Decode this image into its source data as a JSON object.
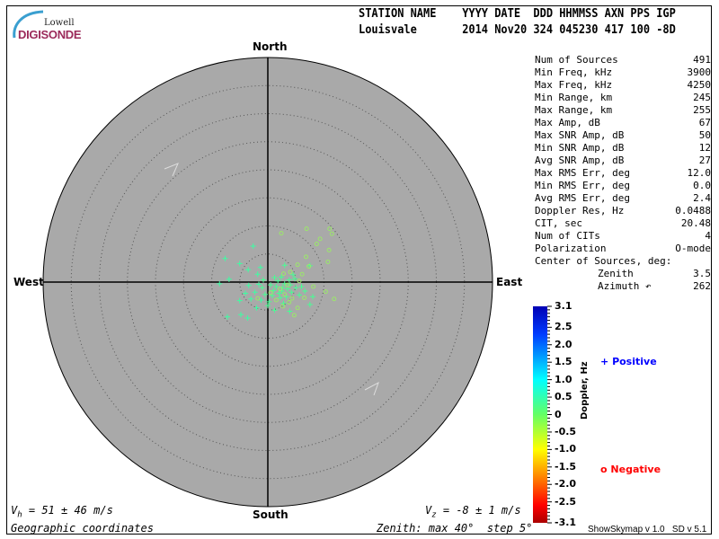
{
  "logo": {
    "line1": "Lowell",
    "line2": "DIGISONDE"
  },
  "header": {
    "labels": "STATION NAME    YYYY DATE  DDD HHMMSS AXN PPS IGP",
    "values": "Louisvale       2014 Nov20 324 045230 417 100 -8D"
  },
  "directions": {
    "north": "North",
    "south": "South",
    "east": "East",
    "west": "West"
  },
  "stats": [
    {
      "label": "Num of Sources",
      "value": "491"
    },
    {
      "label": "Min Freq, kHz",
      "value": "3900"
    },
    {
      "label": "Max Freq, kHz",
      "value": "4250"
    },
    {
      "label": "Min Range, km",
      "value": "245"
    },
    {
      "label": "Max Range, km",
      "value": "255"
    },
    {
      "label": "Max Amp, dB",
      "value": "67"
    },
    {
      "label": "Max SNR Amp, dB",
      "value": "50"
    },
    {
      "label": "Min SNR Amp, dB",
      "value": "12"
    },
    {
      "label": "Avg SNR Amp, dB",
      "value": "27"
    },
    {
      "label": "Max RMS Err, deg",
      "value": "12.0"
    },
    {
      "label": "Min RMS Err, deg",
      "value": "0.0"
    },
    {
      "label": "Avg RMS Err, deg",
      "value": "2.4"
    },
    {
      "label": "Doppler Res, Hz",
      "value": "0.0488"
    },
    {
      "label": "CIT, sec",
      "value": "20.48"
    },
    {
      "label": "Num of CITs",
      "value": "4"
    },
    {
      "label": "Polarization",
      "value": "O-mode"
    }
  ],
  "center": {
    "title": "Center of Sources, deg:",
    "zenith_label": "Zenith",
    "zenith_value": "3.5",
    "azimuth_label": "Azimuth ↶",
    "azimuth_value": "262"
  },
  "footer": {
    "vh_sym": "V",
    "vh_sub": "h",
    "vh_rest": " = 51 ± 46 m/s",
    "vz_sym": "V",
    "vz_sub": "z",
    "vz_rest": " = -8 ± 1 m/s",
    "coords": "Geographic coordinates",
    "zenith_info": "Zenith: max 40°  step 5°",
    "version": "ShowSkymap v 1.0   SD v 5.1"
  },
  "legend": {
    "positive": "Positive",
    "negative": "Negative",
    "positive_color": "#0000ff",
    "negative_color": "#ff0000"
  },
  "chart_data": {
    "type": "scatter",
    "projection": "polar skymap",
    "zenith_max_deg": 40,
    "zenith_step_deg": 5,
    "plot_background": "#a9a9a9",
    "grid": "dotted zenith rings",
    "colorbar": {
      "label": "Doppler, Hz",
      "range": [
        -3.1,
        3.1
      ],
      "ticks": [
        "3.1",
        "2.5",
        "2.0",
        "1.5",
        "1.0",
        "0.5",
        "0",
        "-0.5",
        "-1.0",
        "-1.5",
        "-2.0",
        "-2.5",
        "-3.1"
      ],
      "tick_values": [
        3.1,
        2.5,
        2.0,
        1.5,
        1.0,
        0.5,
        0,
        -0.5,
        -1.0,
        -1.5,
        -2.0,
        -2.5,
        -3.1
      ]
    },
    "units": "zenith-angle components in degrees (east, north)",
    "positive_points": [
      [
        -2.6,
        6.4,
        0.4
      ],
      [
        -7.6,
        4.2,
        0.4
      ],
      [
        -5.0,
        3.3,
        0.4
      ],
      [
        -3.5,
        2.2,
        0.4
      ],
      [
        -1.3,
        2.6,
        0.4
      ],
      [
        3.0,
        3.0,
        0.3
      ],
      [
        7.5,
        2.9,
        0.3
      ],
      [
        4.5,
        1.3,
        0.3
      ],
      [
        -8.6,
        -0.3,
        0.4
      ],
      [
        -6.9,
        0.5,
        0.4
      ],
      [
        -3.4,
        -0.6,
        0.4
      ],
      [
        -1.8,
        1.4,
        0.4
      ],
      [
        -2.3,
        -1.8,
        0.4
      ],
      [
        -4.0,
        -2.0,
        0.4
      ],
      [
        -5.0,
        -3.3,
        0.4
      ],
      [
        -2.0,
        -4.6,
        0.4
      ],
      [
        0.2,
        -3.5,
        0.3
      ],
      [
        2.6,
        -1.0,
        0.3
      ],
      [
        4.0,
        -0.5,
        0.3
      ],
      [
        5.6,
        -2.3,
        0.3
      ],
      [
        7.5,
        -4.0,
        0.3
      ],
      [
        8.0,
        -2.6,
        0.3
      ],
      [
        3.9,
        -5.2,
        0.3
      ],
      [
        1.2,
        -5.0,
        0.3
      ],
      [
        -3.6,
        -6.4,
        0.4
      ],
      [
        -4.8,
        -5.8,
        0.4
      ],
      [
        -7.2,
        -6.2,
        0.4
      ],
      [
        -3.0,
        -3.0,
        0.4
      ],
      [
        -1.0,
        -1.0,
        0.3
      ],
      [
        0.5,
        -0.5,
        0.3
      ],
      [
        1.0,
        -1.5,
        0.3
      ],
      [
        1.5,
        -0.8,
        0.3
      ],
      [
        2.0,
        -2.0,
        0.3
      ],
      [
        2.5,
        -1.6,
        0.3
      ],
      [
        3.0,
        -0.3,
        0.3
      ],
      [
        3.5,
        -1.2,
        0.3
      ],
      [
        4.2,
        -1.8,
        0.3
      ],
      [
        1.8,
        0.2,
        0.3
      ],
      [
        2.2,
        -2.8,
        0.3
      ],
      [
        3.3,
        -2.6,
        0.3
      ],
      [
        0.8,
        -2.4,
        0.3
      ],
      [
        -0.5,
        -2.2,
        0.3
      ],
      [
        5.0,
        -1.0,
        0.3
      ],
      [
        6.0,
        -0.8,
        0.3
      ],
      [
        4.8,
        0.6,
        0.3
      ],
      [
        1.2,
        0.8,
        0.3
      ],
      [
        -0.8,
        0.4,
        0.3
      ],
      [
        -1.6,
        -0.4,
        0.4
      ],
      [
        2.8,
        -3.8,
        0.3
      ],
      [
        0.0,
        -4.2,
        0.3
      ],
      [
        -1.2,
        -3.2,
        0.4
      ],
      [
        6.6,
        -1.6,
        0.3
      ],
      [
        2.4,
        0.9,
        0.3
      ],
      [
        3.8,
        0.4,
        0.3
      ]
    ],
    "negative_points": [
      [
        2.4,
        8.7,
        -0.3
      ],
      [
        6.9,
        9.5,
        -0.3
      ],
      [
        8.7,
        6.8,
        -0.3
      ],
      [
        9.3,
        7.7,
        -0.3
      ],
      [
        10.9,
        5.7,
        -0.3
      ],
      [
        11.0,
        9.5,
        -0.3
      ],
      [
        11.4,
        8.6,
        -0.3
      ],
      [
        10.7,
        3.6,
        -0.3
      ],
      [
        7.3,
        2.8,
        -0.3
      ],
      [
        5.3,
        3.1,
        -0.3
      ],
      [
        6.1,
        1.4,
        -0.3
      ],
      [
        5.6,
        0.2,
        -0.3
      ],
      [
        8.1,
        -0.8,
        -0.3
      ],
      [
        10.3,
        -1.7,
        -0.3
      ],
      [
        2.8,
        1.5,
        -0.3
      ],
      [
        3.5,
        -0.5,
        -0.3
      ],
      [
        4.3,
        -2.9,
        -0.3
      ],
      [
        2.7,
        -4.3,
        -0.3
      ],
      [
        1.5,
        -3.2,
        -0.3
      ],
      [
        5.3,
        -4.6,
        -0.3
      ],
      [
        -1.8,
        -2.9,
        -0.3
      ],
      [
        0.5,
        -1.9,
        -0.3
      ],
      [
        3.0,
        -2.2,
        -0.3
      ],
      [
        6.5,
        -2.8,
        -0.3
      ],
      [
        4.7,
        -5.9,
        -0.3
      ],
      [
        11.8,
        -3.0,
        -0.3
      ],
      [
        4.0,
        1.8,
        -0.3
      ],
      [
        6.8,
        4.5,
        -0.3
      ],
      [
        2.2,
        -1.2,
        -0.3
      ],
      [
        3.8,
        -3.6,
        -0.3
      ]
    ]
  }
}
